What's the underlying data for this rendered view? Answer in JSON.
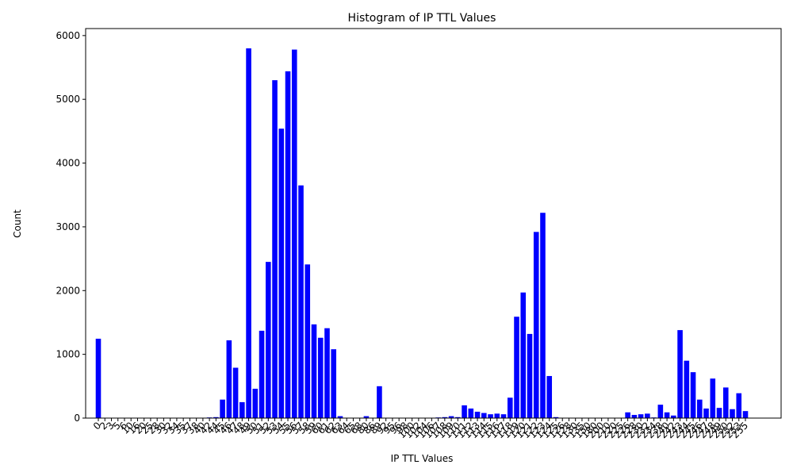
{
  "chart_data": {
    "type": "bar",
    "title": "Histogram of IP TTL Values",
    "x_label": "IP TTL Values",
    "y_label": "Count",
    "color": "#0000ff",
    "categories": [
      "0",
      "2",
      "3",
      "5",
      "6",
      "10",
      "16",
      "20",
      "25",
      "28",
      "30",
      "32",
      "34",
      "35",
      "37",
      "38",
      "40",
      "42",
      "44",
      "45",
      "46",
      "47",
      "48",
      "49",
      "50",
      "51",
      "52",
      "53",
      "54",
      "55",
      "56",
      "57",
      "58",
      "59",
      "60",
      "61",
      "62",
      "63",
      "64",
      "65",
      "68",
      "80",
      "86",
      "89",
      "92",
      "95",
      "96",
      "98",
      "100",
      "102",
      "104",
      "106",
      "107",
      "108",
      "109",
      "110",
      "111",
      "112",
      "113",
      "114",
      "115",
      "116",
      "117",
      "118",
      "119",
      "120",
      "121",
      "122",
      "123",
      "124",
      "125",
      "126",
      "128",
      "130",
      "135",
      "150",
      "180",
      "200",
      "210",
      "220",
      "225",
      "226",
      "228",
      "230",
      "232",
      "234",
      "238",
      "240",
      "242",
      "243",
      "244",
      "245",
      "246",
      "247",
      "248",
      "249",
      "250",
      "252",
      "253",
      "255"
    ],
    "values": [
      1245,
      3,
      2,
      2,
      2,
      2,
      2,
      2,
      2,
      2,
      2,
      2,
      2,
      2,
      3,
      3,
      5,
      10,
      15,
      290,
      1220,
      790,
      250,
      5800,
      460,
      1370,
      2450,
      5300,
      4540,
      5440,
      5780,
      3650,
      2410,
      1470,
      1260,
      1410,
      1080,
      30,
      5,
      5,
      5,
      30,
      5,
      500,
      3,
      2,
      2,
      2,
      2,
      2,
      2,
      5,
      10,
      15,
      30,
      15,
      200,
      150,
      100,
      80,
      60,
      70,
      60,
      320,
      1590,
      1970,
      1320,
      2920,
      3220,
      660,
      15,
      5,
      3,
      2,
      2,
      2,
      2,
      2,
      2,
      2,
      5,
      90,
      50,
      60,
      70,
      10,
      210,
      90,
      40,
      1380,
      900,
      720,
      290,
      150,
      620,
      160,
      480,
      140,
      390,
      110
    ],
    "ylim": [
      0,
      6110
    ],
    "yticks": [
      0,
      1000,
      2000,
      3000,
      4000,
      5000,
      6000
    ]
  }
}
